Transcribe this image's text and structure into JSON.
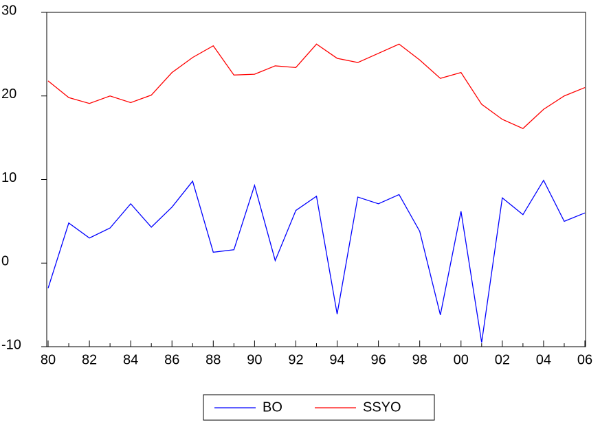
{
  "chart_data": {
    "type": "line",
    "categories": [
      "80",
      null,
      "82",
      null,
      "84",
      null,
      "86",
      null,
      "88",
      null,
      "90",
      null,
      "92",
      null,
      "94",
      null,
      "96",
      null,
      "98",
      null,
      "00",
      null,
      "02",
      null,
      "04",
      null,
      "06"
    ],
    "series": [
      {
        "name": "BO",
        "color": "#0000ff",
        "values": [
          -3.0,
          4.8,
          3.0,
          4.2,
          7.1,
          4.3,
          6.7,
          9.8,
          1.3,
          1.6,
          9.3,
          0.3,
          6.3,
          8.0,
          -6.1,
          7.9,
          7.1,
          8.2,
          3.8,
          -6.2,
          6.2,
          -9.5,
          7.8,
          5.8,
          9.9,
          5.0,
          6.0
        ]
      },
      {
        "name": "SSYO",
        "color": "#ff0000",
        "values": [
          21.8,
          19.8,
          19.1,
          20.0,
          19.2,
          20.1,
          22.8,
          24.6,
          26.0,
          22.5,
          22.6,
          23.6,
          23.4,
          26.2,
          24.5,
          24.0,
          25.1,
          26.2,
          24.3,
          22.1,
          22.8,
          19.0,
          17.2,
          16.1,
          18.4,
          20.0,
          21.0
        ]
      }
    ],
    "ylim": [
      -10,
      30
    ],
    "yticks": [
      -10,
      0,
      10,
      20,
      30
    ],
    "legend": "bottom"
  }
}
